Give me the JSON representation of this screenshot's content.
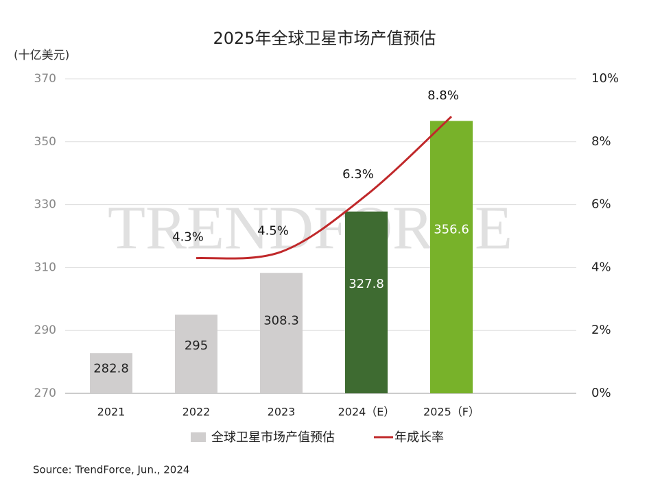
{
  "chart_data": {
    "type": "bar-line",
    "title": "2025年全球卫星市场产值预估",
    "y_label": "(十亿美元)",
    "watermark": "TRENDFORCE",
    "source": "Source: TrendForce, Jun., 2024",
    "categories": [
      "2021",
      "2022",
      "2023",
      "2024（E）",
      "2025（F）"
    ],
    "ylim": [
      270,
      370
    ],
    "yticks": [
      270,
      290,
      310,
      330,
      350,
      370
    ],
    "y2lim": [
      0,
      10
    ],
    "y2ticks": [
      {
        "value": 0,
        "label": "0%"
      },
      {
        "value": 2,
        "label": "2%"
      },
      {
        "value": 4,
        "label": "4%"
      },
      {
        "value": 6,
        "label": "6%"
      },
      {
        "value": 8,
        "label": "8%"
      },
      {
        "value": 10,
        "label": "10%"
      }
    ],
    "grid": true,
    "series": [
      {
        "name": "全球卫星市场产值预估",
        "type": "bar",
        "color": "#d0cece",
        "colors": [
          "#d0cece",
          "#d0cece",
          "#d0cece",
          "#3e6b31",
          "#78b22a"
        ],
        "label_colors": [
          "#222222",
          "#222222",
          "#222222",
          "#ffffff",
          "#ffffff"
        ],
        "values": [
          282.8,
          295,
          308.3,
          327.8,
          356.6
        ]
      },
      {
        "name": "年成长率",
        "type": "line",
        "axis": "y2",
        "color": "#c0282a",
        "values": [
          null,
          4.3,
          4.5,
          6.3,
          8.8
        ],
        "value_labels": [
          null,
          "4.3%",
          "4.5%",
          "6.3%",
          "8.8%"
        ]
      }
    ]
  }
}
